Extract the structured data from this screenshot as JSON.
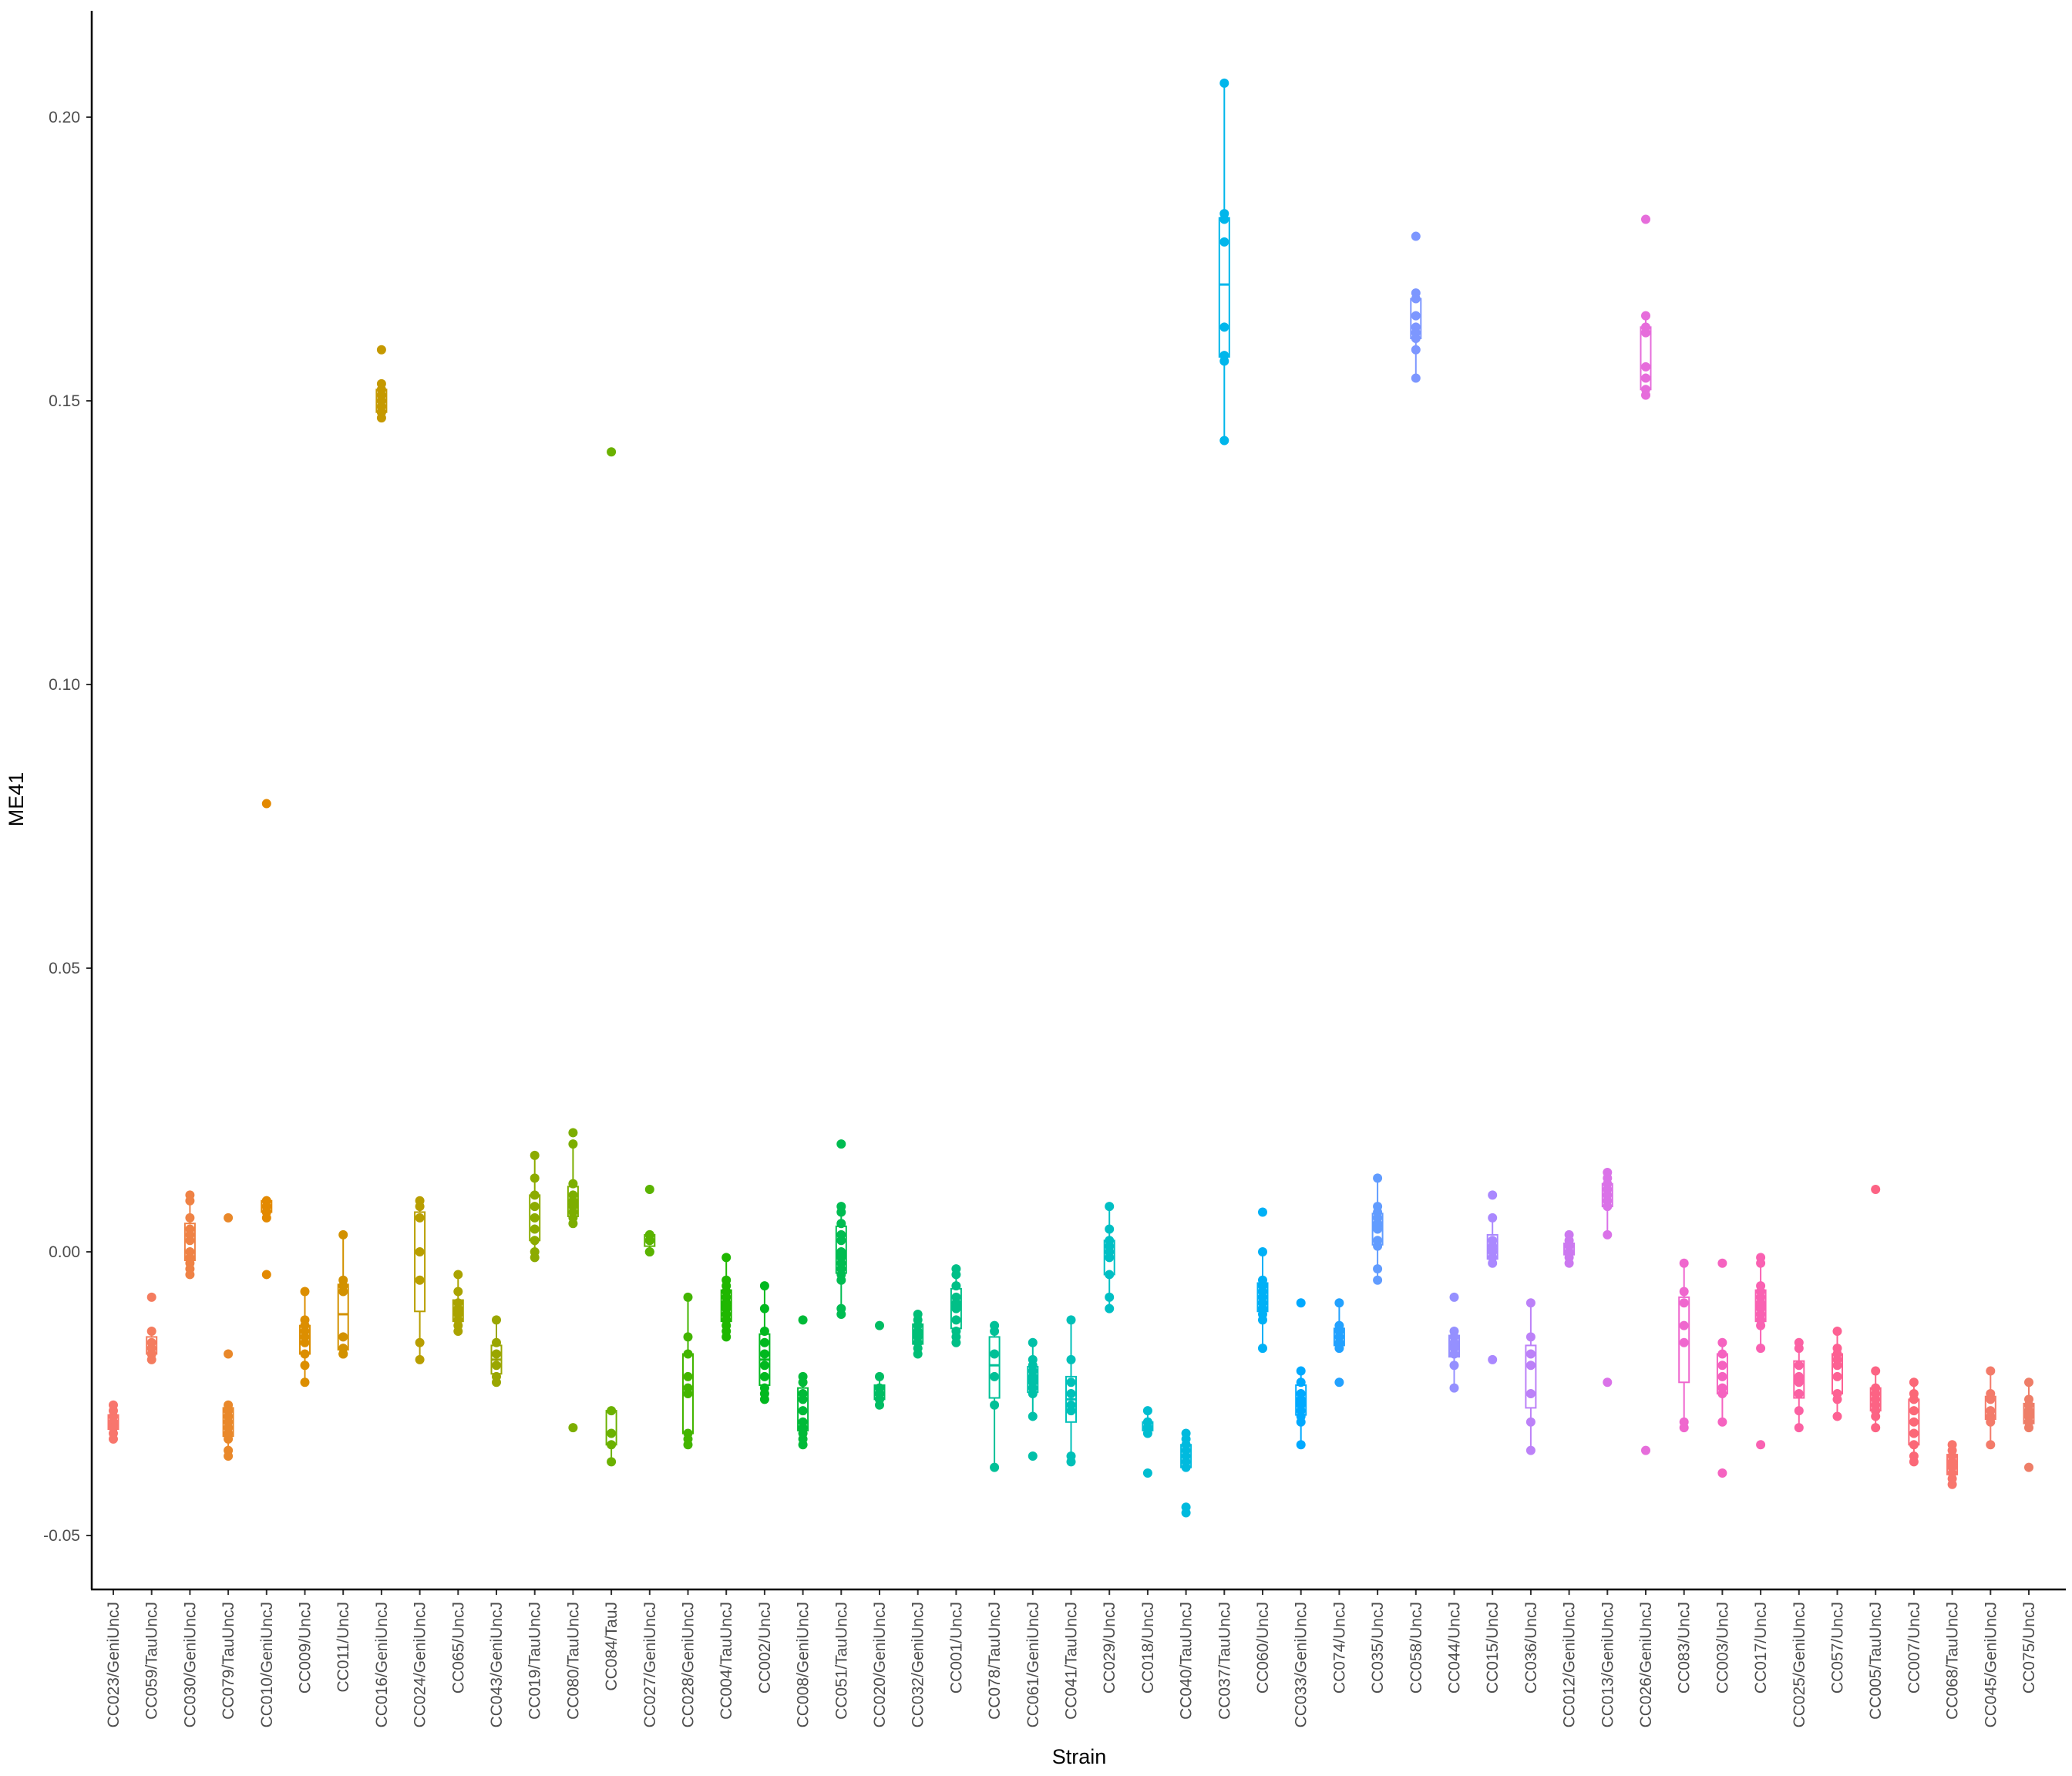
{
  "chart_data": {
    "type": "boxplot",
    "xlabel": "Strain",
    "ylabel": "ME41",
    "ylim": [
      -0.055,
      0.22
    ],
    "yticks": [
      -0.05,
      0.0,
      0.05,
      0.1,
      0.15,
      0.2
    ],
    "ytick_labels": [
      "-0.05",
      "0.00",
      "0.05",
      "0.10",
      "0.15",
      "0.20"
    ],
    "grid": false,
    "legend": "none",
    "categories": [
      "CC023/GeniUncJ",
      "CC059/TauUncJ",
      "CC030/GeniUncJ",
      "CC079/TauUncJ",
      "CC010/GeniUncJ",
      "CC009/UncJ",
      "CC011/UncJ",
      "CC016/GeniUncJ",
      "CC024/GeniUncJ",
      "CC065/UncJ",
      "CC043/GeniUncJ",
      "CC019/TauUncJ",
      "CC080/TauUncJ",
      "CC084/TauJ",
      "CC027/GeniUncJ",
      "CC028/GeniUncJ",
      "CC004/TauUncJ",
      "CC002/UncJ",
      "CC008/GeniUncJ",
      "CC051/TauUncJ",
      "CC020/GeniUncJ",
      "CC032/GeniUncJ",
      "CC001/UncJ",
      "CC078/TauUncJ",
      "CC061/GeniUncJ",
      "CC041/TauUncJ",
      "CC029/UncJ",
      "CC018/UncJ",
      "CC040/TauUncJ",
      "CC037/TauUncJ",
      "CC060/UncJ",
      "CC033/GeniUncJ",
      "CC074/UncJ",
      "CC035/UncJ",
      "CC058/UncJ",
      "CC044/UncJ",
      "CC015/UncJ",
      "CC036/UncJ",
      "CC012/GeniUncJ",
      "CC013/GeniUncJ",
      "CC026/GeniUncJ",
      "CC083/UncJ",
      "CC003/UncJ",
      "CC017/UncJ",
      "CC025/GeniUncJ",
      "CC057/UncJ",
      "CC005/TauUncJ",
      "CC007/UncJ",
      "CC068/TauUncJ",
      "CC045/GeniUncJ",
      "CC075/UncJ"
    ],
    "colors": [
      "#F8766D",
      "#F47C5F",
      "#EF8245",
      "#E9882A",
      "#E38900",
      "#DC8E00",
      "#D29100",
      "#C59900",
      "#B89E00",
      "#AAA300",
      "#9AA600",
      "#8CAB00",
      "#7CAE00",
      "#6BB100",
      "#5AB300",
      "#43B500",
      "#1FB700",
      "#00B81F",
      "#00BA38",
      "#00BC51",
      "#00BD63",
      "#00BE76",
      "#00BF87",
      "#00C097",
      "#00C0A8",
      "#00C0B8",
      "#00BFC4",
      "#00BDD0",
      "#00BADE",
      "#00B6EB",
      "#00B0F6",
      "#00A9FF",
      "#22A1FF",
      "#619CFF",
      "#7D97FF",
      "#9590FF",
      "#AA88FF",
      "#BC81F8",
      "#CC78F0",
      "#DA72E8",
      "#E66DDB",
      "#EF67CE",
      "#F563C0",
      "#F961B2",
      "#FB61A3",
      "#FD6193",
      "#FC6384",
      "#FB6877",
      "#F8766D",
      "#F37B6A",
      "#EE7E68"
    ],
    "series": [
      {
        "name": "CC023/GeniUncJ",
        "points": [
          -0.027,
          -0.028,
          -0.029,
          -0.03,
          -0.031,
          -0.031,
          -0.032,
          -0.033
        ]
      },
      {
        "name": "CC059/TauUncJ",
        "points": [
          -0.008,
          -0.014,
          -0.016,
          -0.017,
          -0.018,
          -0.018,
          -0.019
        ]
      },
      {
        "name": "CC030/GeniUncJ",
        "points": [
          0.01,
          0.009,
          0.006,
          0.004,
          0.003,
          0.002,
          0.0,
          -0.001,
          -0.002,
          -0.003,
          -0.004
        ]
      },
      {
        "name": "CC079/TauUncJ",
        "points": [
          0.006,
          -0.018,
          -0.027,
          -0.028,
          -0.029,
          -0.03,
          -0.031,
          -0.032,
          -0.033,
          -0.035,
          -0.036
        ]
      },
      {
        "name": "CC010/GeniUncJ",
        "points": [
          0.079,
          0.009,
          0.009,
          0.008,
          0.008,
          0.007,
          0.007,
          0.006,
          -0.004
        ]
      },
      {
        "name": "CC009/UncJ",
        "points": [
          -0.007,
          -0.012,
          -0.013,
          -0.014,
          -0.015,
          -0.016,
          -0.018,
          -0.02,
          -0.023
        ]
      },
      {
        "name": "CC011/UncJ",
        "points": [
          0.003,
          -0.005,
          -0.006,
          -0.007,
          -0.015,
          -0.017,
          -0.018,
          -0.018
        ]
      },
      {
        "name": "CC016/GeniUncJ",
        "points": [
          0.159,
          0.153,
          0.152,
          0.151,
          0.15,
          0.149,
          0.148,
          0.148,
          0.147
        ]
      },
      {
        "name": "CC024/GeniUncJ",
        "points": [
          0.009,
          0.008,
          0.006,
          0.0,
          -0.005,
          -0.016,
          -0.019
        ]
      },
      {
        "name": "CC065/UncJ",
        "points": [
          -0.004,
          -0.007,
          -0.009,
          -0.01,
          -0.011,
          -0.012,
          -0.013,
          -0.014
        ]
      },
      {
        "name": "CC043/GeniUncJ",
        "points": [
          -0.012,
          -0.016,
          -0.018,
          -0.02,
          -0.022,
          -0.023
        ]
      },
      {
        "name": "CC019/TauUncJ",
        "points": [
          0.017,
          0.013,
          0.01,
          0.008,
          0.006,
          0.004,
          0.002,
          0.0,
          -0.001
        ]
      },
      {
        "name": "CC080/TauUncJ",
        "points": [
          0.021,
          0.019,
          0.012,
          0.01,
          0.009,
          0.008,
          0.007,
          0.006,
          0.005,
          -0.031
        ]
      },
      {
        "name": "CC084/TauJ",
        "points": [
          0.141,
          -0.028,
          -0.032,
          -0.034,
          -0.037
        ]
      },
      {
        "name": "CC027/GeniUncJ",
        "points": [
          0.011,
          0.003,
          0.003,
          0.002,
          0.002,
          0.0,
          -0.0
        ]
      },
      {
        "name": "CC028/GeniUncJ",
        "points": [
          -0.008,
          -0.015,
          -0.018,
          -0.022,
          -0.024,
          -0.025,
          -0.032,
          -0.033,
          -0.034
        ]
      },
      {
        "name": "CC004/TauUncJ",
        "points": [
          -0.001,
          -0.005,
          -0.006,
          -0.007,
          -0.008,
          -0.009,
          -0.01,
          -0.011,
          -0.012,
          -0.013,
          -0.014,
          -0.015
        ]
      },
      {
        "name": "CC002/UncJ",
        "points": [
          -0.006,
          -0.01,
          -0.014,
          -0.016,
          -0.018,
          -0.02,
          -0.022,
          -0.024,
          -0.025,
          -0.026
        ]
      },
      {
        "name": "CC008/GeniUncJ",
        "points": [
          -0.012,
          -0.022,
          -0.023,
          -0.025,
          -0.026,
          -0.028,
          -0.03,
          -0.031,
          -0.032,
          -0.033,
          -0.034
        ]
      },
      {
        "name": "CC051/TauUncJ",
        "points": [
          0.019,
          0.008,
          0.007,
          0.005,
          0.003,
          0.002,
          0.0,
          -0.001,
          -0.002,
          -0.003,
          -0.004,
          -0.005,
          -0.01,
          -0.011
        ]
      },
      {
        "name": "CC020/GeniUncJ",
        "points": [
          -0.013,
          -0.022,
          -0.024,
          -0.025,
          -0.025,
          -0.026,
          -0.026,
          -0.027
        ]
      },
      {
        "name": "CC032/GeniUncJ",
        "points": [
          -0.011,
          -0.012,
          -0.013,
          -0.014,
          -0.015,
          -0.016,
          -0.017,
          -0.018
        ]
      },
      {
        "name": "CC001/UncJ",
        "points": [
          -0.003,
          -0.004,
          -0.006,
          -0.008,
          -0.009,
          -0.01,
          -0.012,
          -0.014,
          -0.015,
          -0.016
        ]
      },
      {
        "name": "CC078/TauUncJ",
        "points": [
          -0.013,
          -0.014,
          -0.018,
          -0.022,
          -0.027,
          -0.038
        ]
      },
      {
        "name": "CC061/GeniUncJ",
        "points": [
          -0.016,
          -0.019,
          -0.02,
          -0.021,
          -0.022,
          -0.023,
          -0.024,
          -0.025,
          -0.029,
          -0.036
        ]
      },
      {
        "name": "CC041/TauUncJ",
        "points": [
          -0.012,
          -0.019,
          -0.023,
          -0.025,
          -0.027,
          -0.028,
          -0.036,
          -0.037
        ]
      },
      {
        "name": "CC029/UncJ",
        "points": [
          0.008,
          0.004,
          0.002,
          0.001,
          0.0,
          -0.001,
          -0.004,
          -0.008,
          -0.01
        ]
      },
      {
        "name": "CC018/UncJ",
        "points": [
          -0.028,
          -0.03,
          -0.03,
          -0.031,
          -0.031,
          -0.032,
          -0.039
        ]
      },
      {
        "name": "CC040/TauUncJ",
        "points": [
          -0.032,
          -0.033,
          -0.034,
          -0.035,
          -0.036,
          -0.037,
          -0.038,
          -0.045,
          -0.046
        ]
      },
      {
        "name": "CC037/TauUncJ",
        "points": [
          0.206,
          0.183,
          0.182,
          0.178,
          0.163,
          0.158,
          0.157,
          0.143
        ]
      },
      {
        "name": "CC060/UncJ",
        "points": [
          0.007,
          0.0,
          -0.005,
          -0.006,
          -0.007,
          -0.008,
          -0.009,
          -0.01,
          -0.011,
          -0.012,
          -0.017
        ]
      },
      {
        "name": "CC033/GeniUncJ",
        "points": [
          -0.009,
          -0.021,
          -0.023,
          -0.025,
          -0.026,
          -0.027,
          -0.028,
          -0.029,
          -0.03,
          -0.034
        ]
      },
      {
        "name": "CC074/UncJ",
        "points": [
          -0.009,
          -0.013,
          -0.014,
          -0.015,
          -0.016,
          -0.017,
          -0.023
        ]
      },
      {
        "name": "CC035/UncJ",
        "points": [
          0.013,
          0.008,
          0.007,
          0.006,
          0.005,
          0.004,
          0.002,
          0.001,
          -0.003,
          -0.005
        ]
      },
      {
        "name": "CC058/UncJ",
        "points": [
          0.179,
          0.169,
          0.168,
          0.165,
          0.163,
          0.162,
          0.161,
          0.159,
          0.154
        ]
      },
      {
        "name": "CC044/UncJ",
        "points": [
          -0.008,
          -0.014,
          -0.015,
          -0.016,
          -0.017,
          -0.018,
          -0.02,
          -0.024
        ]
      },
      {
        "name": "CC015/UncJ",
        "points": [
          0.01,
          0.006,
          0.002,
          0.001,
          0.0,
          -0.001,
          -0.002,
          -0.019
        ]
      },
      {
        "name": "CC036/UncJ",
        "points": [
          -0.009,
          -0.015,
          -0.018,
          -0.02,
          -0.025,
          -0.03,
          -0.035
        ]
      },
      {
        "name": "CC012/GeniUncJ",
        "points": [
          0.003,
          0.002,
          0.001,
          0.0,
          0.0,
          -0.001,
          -0.002
        ]
      },
      {
        "name": "CC013/GeniUncJ",
        "points": [
          0.014,
          0.013,
          0.012,
          0.011,
          0.01,
          0.009,
          0.008,
          0.003,
          -0.023
        ]
      },
      {
        "name": "CC026/GeniUncJ",
        "points": [
          0.182,
          0.165,
          0.163,
          0.162,
          0.156,
          0.154,
          0.152,
          0.151,
          -0.035
        ]
      },
      {
        "name": "CC083/UncJ",
        "points": [
          -0.002,
          -0.007,
          -0.009,
          -0.013,
          -0.016,
          -0.03,
          -0.031
        ]
      },
      {
        "name": "CC003/UncJ",
        "points": [
          -0.002,
          -0.016,
          -0.018,
          -0.02,
          -0.022,
          -0.024,
          -0.025,
          -0.03,
          -0.039
        ]
      },
      {
        "name": "CC017/UncJ",
        "points": [
          -0.001,
          -0.002,
          -0.006,
          -0.007,
          -0.008,
          -0.009,
          -0.01,
          -0.011,
          -0.012,
          -0.013,
          -0.017,
          -0.034
        ]
      },
      {
        "name": "CC025/GeniUncJ",
        "points": [
          -0.016,
          -0.017,
          -0.02,
          -0.022,
          -0.023,
          -0.025,
          -0.028,
          -0.031
        ]
      },
      {
        "name": "CC057/UncJ",
        "points": [
          -0.014,
          -0.017,
          -0.018,
          -0.019,
          -0.02,
          -0.022,
          -0.025,
          -0.026,
          -0.029
        ]
      },
      {
        "name": "CC005/TauUncJ",
        "points": [
          0.011,
          -0.021,
          -0.024,
          -0.025,
          -0.026,
          -0.027,
          -0.028,
          -0.029,
          -0.031
        ]
      },
      {
        "name": "CC007/UncJ",
        "points": [
          -0.023,
          -0.025,
          -0.026,
          -0.028,
          -0.03,
          -0.032,
          -0.034,
          -0.036,
          -0.037
        ]
      },
      {
        "name": "CC068/TauUncJ",
        "points": [
          -0.034,
          -0.035,
          -0.036,
          -0.037,
          -0.038,
          -0.039,
          -0.04,
          -0.041
        ]
      },
      {
        "name": "CC045/GeniUncJ",
        "points": [
          -0.021,
          -0.025,
          -0.026,
          -0.028,
          -0.029,
          -0.03,
          -0.034
        ]
      },
      {
        "name": "CC075/UncJ",
        "points": [
          -0.023,
          -0.026,
          -0.027,
          -0.028,
          -0.029,
          -0.03,
          -0.031,
          -0.038
        ]
      }
    ]
  }
}
